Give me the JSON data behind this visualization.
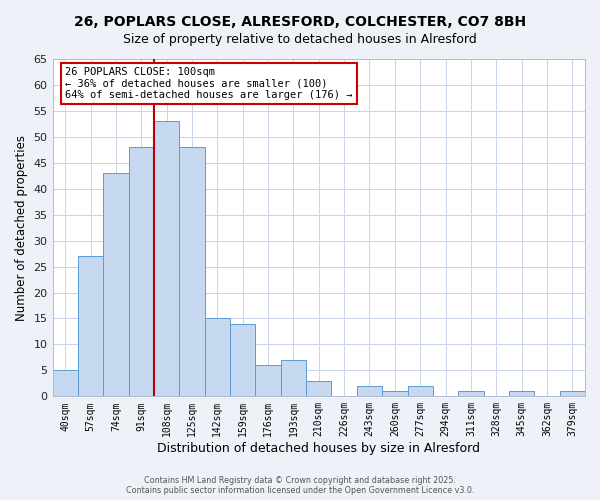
{
  "title": "26, POPLARS CLOSE, ALRESFORD, COLCHESTER, CO7 8BH",
  "subtitle": "Size of property relative to detached houses in Alresford",
  "xlabel": "Distribution of detached houses by size in Alresford",
  "ylabel": "Number of detached properties",
  "bar_labels": [
    "40sqm",
    "57sqm",
    "74sqm",
    "91sqm",
    "108sqm",
    "125sqm",
    "142sqm",
    "159sqm",
    "176sqm",
    "193sqm",
    "210sqm",
    "226sqm",
    "243sqm",
    "260sqm",
    "277sqm",
    "294sqm",
    "311sqm",
    "328sqm",
    "345sqm",
    "362sqm",
    "379sqm"
  ],
  "bar_values": [
    5,
    27,
    43,
    48,
    53,
    48,
    15,
    14,
    6,
    7,
    3,
    0,
    2,
    1,
    2,
    0,
    1,
    0,
    1,
    0,
    1
  ],
  "bar_color": "#c6d9f0",
  "bar_edge_color": "#5b9bd5",
  "ylim": [
    0,
    65
  ],
  "yticks": [
    0,
    5,
    10,
    15,
    20,
    25,
    30,
    35,
    40,
    45,
    50,
    55,
    60,
    65
  ],
  "vline_x_index": 3.5,
  "vline_color": "#bb0000",
  "annotation_text": "26 POPLARS CLOSE: 100sqm\n← 36% of detached houses are smaller (100)\n64% of semi-detached houses are larger (176) →",
  "annotation_box_color": "#ffffff",
  "annotation_box_edge_color": "#cc0000",
  "footer_line1": "Contains HM Land Registry data © Crown copyright and database right 2025.",
  "footer_line2": "Contains public sector information licensed under the Open Government Licence v3.0.",
  "bg_color": "#eef2f8",
  "plot_bg_color": "#ffffff",
  "grid_color": "#c8d4e8"
}
